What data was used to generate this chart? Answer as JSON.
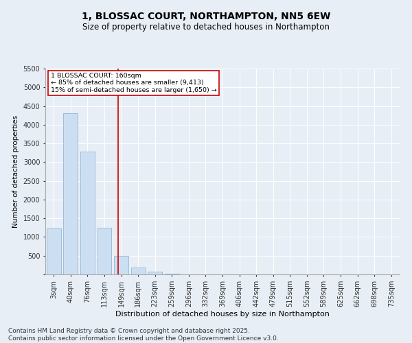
{
  "title_line1": "1, BLOSSAC COURT, NORTHAMPTON, NN5 6EW",
  "title_line2": "Size of property relative to detached houses in Northampton",
  "xlabel": "Distribution of detached houses by size in Northampton",
  "ylabel": "Number of detached properties",
  "categories": [
    "3sqm",
    "40sqm",
    "76sqm",
    "113sqm",
    "149sqm",
    "186sqm",
    "223sqm",
    "259sqm",
    "296sqm",
    "332sqm",
    "369sqm",
    "406sqm",
    "442sqm",
    "479sqm",
    "515sqm",
    "552sqm",
    "589sqm",
    "625sqm",
    "662sqm",
    "698sqm",
    "735sqm"
  ],
  "values": [
    1220,
    4310,
    3280,
    1240,
    490,
    185,
    70,
    25,
    0,
    0,
    0,
    0,
    0,
    0,
    0,
    0,
    0,
    0,
    0,
    0,
    0
  ],
  "bar_color": "#ccdff2",
  "bar_edge_color": "#90b8d8",
  "vline_color": "#cc0000",
  "vline_pos": 3.797,
  "annotation_line1": "1 BLOSSAC COURT: 160sqm",
  "annotation_line2": "← 85% of detached houses are smaller (9,413)",
  "annotation_line3": "15% of semi-detached houses are larger (1,650) →",
  "annotation_box_color": "#cc0000",
  "ylim": [
    0,
    5500
  ],
  "yticks": [
    0,
    500,
    1000,
    1500,
    2000,
    2500,
    3000,
    3500,
    4000,
    4500,
    5000,
    5500
  ],
  "background_color": "#e8eef5",
  "plot_bg_color": "#e8eef5",
  "footer_line1": "Contains HM Land Registry data © Crown copyright and database right 2025.",
  "footer_line2": "Contains public sector information licensed under the Open Government Licence v3.0.",
  "title_fontsize": 10,
  "subtitle_fontsize": 8.5,
  "tick_fontsize": 7,
  "xlabel_fontsize": 8,
  "ylabel_fontsize": 7.5,
  "footer_fontsize": 6.5
}
